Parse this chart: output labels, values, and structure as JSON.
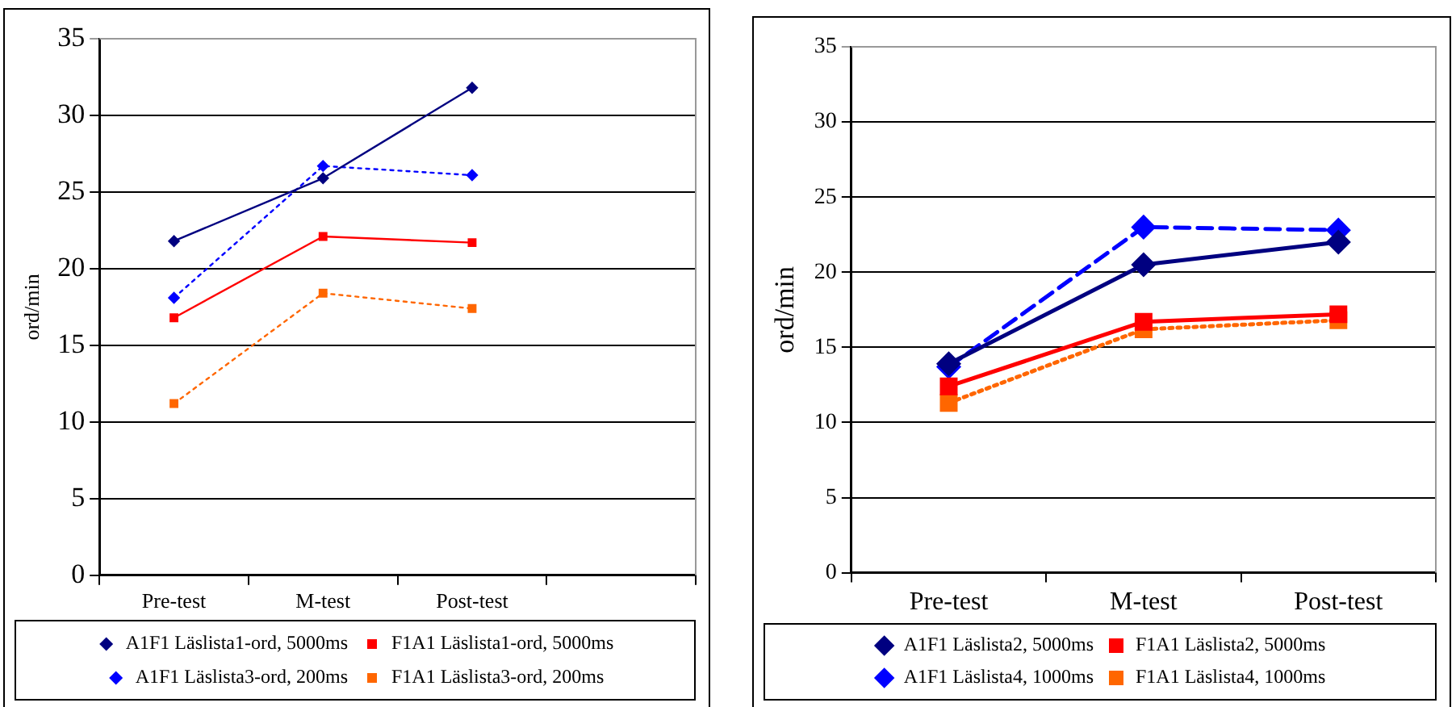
{
  "chart_data": [
    {
      "type": "line",
      "ylabel": "ord/min",
      "categories": [
        "Pre-test",
        "M-test",
        "Post-test",
        null
      ],
      "ylim": [
        0,
        35
      ],
      "yticks": [
        0,
        5,
        10,
        15,
        20,
        25,
        30,
        35
      ],
      "grid": "y",
      "legend": "bottom",
      "series": [
        {
          "name": "A1F1 Läslista1-ord, 5000ms",
          "color": "#000080",
          "marker": "diamond",
          "line_style": "solid",
          "values": [
            21.8,
            25.9,
            31.8,
            null
          ]
        },
        {
          "name": "F1A1 Läslista1-ord, 5000ms",
          "color": "#ff0000",
          "marker": "square",
          "line_style": "solid",
          "values": [
            16.8,
            22.1,
            21.7,
            null
          ]
        },
        {
          "name": "A1F1 Läslista3-ord, 200ms",
          "color": "#0000ff",
          "marker": "diamond",
          "line_style": "dotted",
          "values": [
            18.1,
            26.7,
            26.1,
            null
          ]
        },
        {
          "name": "F1A1 Läslista3-ord, 200ms",
          "color": "#ff6600",
          "marker": "square",
          "line_style": "dotted",
          "values": [
            11.2,
            18.4,
            17.4,
            null
          ]
        }
      ]
    },
    {
      "type": "line",
      "ylabel": "ord/min",
      "categories": [
        "Pre-test",
        "M-test",
        "Post-test"
      ],
      "ylim": [
        0,
        35
      ],
      "yticks": [
        0,
        5,
        10,
        15,
        20,
        25,
        30,
        35
      ],
      "grid": "y",
      "legend": "bottom",
      "series": [
        {
          "name": "A1F1 Läslista2, 5000ms",
          "color": "#000080",
          "marker": "diamond",
          "line_style": "solid",
          "values": [
            13.9,
            20.5,
            22.0
          ]
        },
        {
          "name": "F1A1 Läslista2, 5000ms",
          "color": "#ff0000",
          "marker": "square",
          "line_style": "solid",
          "values": [
            12.4,
            16.7,
            17.2
          ]
        },
        {
          "name": "A1F1 Läslista4, 1000ms",
          "color": "#0000ff",
          "marker": "diamond",
          "line_style": "dashed",
          "values": [
            13.7,
            23.0,
            22.8
          ]
        },
        {
          "name": "F1A1 Läslista4, 1000ms",
          "color": "#ff6600",
          "marker": "square",
          "line_style": "dotted",
          "values": [
            11.3,
            16.2,
            16.8
          ]
        }
      ]
    }
  ]
}
